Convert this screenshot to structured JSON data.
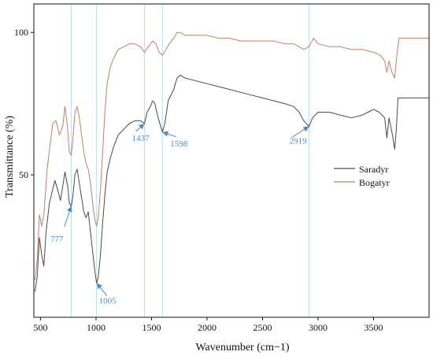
{
  "chart_data": {
    "type": "line",
    "title": "",
    "xlabel": "Wavenumber (cm−1)",
    "ylabel": "Transmittance (%)",
    "xlim": [
      440,
      4000
    ],
    "ylim": [
      0,
      110
    ],
    "x_ticks": [
      "500",
      "1000",
      "1500",
      "2000",
      "2500",
      "3000",
      "3500"
    ],
    "x_tick_values": [
      500,
      1000,
      1500,
      2000,
      2500,
      3000,
      3500
    ],
    "y_ticks": [
      "50",
      "100"
    ],
    "y_tick_values": [
      50,
      100
    ],
    "grid": false,
    "legend": {
      "position": "right-middle"
    },
    "reference_lines": [
      777,
      1005,
      1437,
      1598,
      2919
    ],
    "colors": {
      "Saradyr": "#4a4a4a",
      "Bogatyr": "#c0806a",
      "annotation": "#4a8bc8",
      "reference_line": "#b9dfea"
    },
    "series": [
      {
        "name": "Saradyr",
        "points": [
          [
            450,
            9
          ],
          [
            470,
            14
          ],
          [
            490,
            28
          ],
          [
            510,
            22
          ],
          [
            530,
            18
          ],
          [
            550,
            30
          ],
          [
            580,
            40
          ],
          [
            610,
            45
          ],
          [
            630,
            48
          ],
          [
            660,
            44
          ],
          [
            680,
            41
          ],
          [
            700,
            46
          ],
          [
            720,
            51
          ],
          [
            745,
            46
          ],
          [
            760,
            40
          ],
          [
            777,
            39
          ],
          [
            790,
            42
          ],
          [
            810,
            50
          ],
          [
            830,
            52
          ],
          [
            850,
            47
          ],
          [
            870,
            42
          ],
          [
            890,
            37
          ],
          [
            910,
            35
          ],
          [
            930,
            37
          ],
          [
            950,
            30
          ],
          [
            970,
            23
          ],
          [
            990,
            16
          ],
          [
            1005,
            12
          ],
          [
            1020,
            14
          ],
          [
            1040,
            22
          ],
          [
            1060,
            33
          ],
          [
            1080,
            43
          ],
          [
            1100,
            51
          ],
          [
            1130,
            56
          ],
          [
            1160,
            60
          ],
          [
            1200,
            64
          ],
          [
            1250,
            66
          ],
          [
            1300,
            68
          ],
          [
            1350,
            69
          ],
          [
            1400,
            69
          ],
          [
            1437,
            68
          ],
          [
            1460,
            72
          ],
          [
            1490,
            74
          ],
          [
            1510,
            76
          ],
          [
            1530,
            75
          ],
          [
            1560,
            70
          ],
          [
            1598,
            65
          ],
          [
            1620,
            68
          ],
          [
            1650,
            76
          ],
          [
            1700,
            80
          ],
          [
            1730,
            84
          ],
          [
            1760,
            85
          ],
          [
            1800,
            84
          ],
          [
            1900,
            83
          ],
          [
            2000,
            82
          ],
          [
            2100,
            81
          ],
          [
            2200,
            80
          ],
          [
            2300,
            79
          ],
          [
            2400,
            78
          ],
          [
            2500,
            77
          ],
          [
            2600,
            76
          ],
          [
            2700,
            75
          ],
          [
            2780,
            74
          ],
          [
            2830,
            72
          ],
          [
            2870,
            69
          ],
          [
            2919,
            67
          ],
          [
            2950,
            70
          ],
          [
            3000,
            72
          ],
          [
            3100,
            72
          ],
          [
            3200,
            71
          ],
          [
            3300,
            70
          ],
          [
            3400,
            71
          ],
          [
            3450,
            72
          ],
          [
            3500,
            73
          ],
          [
            3550,
            72
          ],
          [
            3600,
            70
          ],
          [
            3620,
            63
          ],
          [
            3640,
            70
          ],
          [
            3670,
            64
          ],
          [
            3690,
            59
          ],
          [
            3705,
            66
          ],
          [
            3720,
            77
          ],
          [
            3800,
            77
          ],
          [
            3900,
            77
          ],
          [
            4000,
            77
          ]
        ]
      },
      {
        "name": "Bogatyr",
        "points": [
          [
            450,
            13
          ],
          [
            470,
            20
          ],
          [
            490,
            36
          ],
          [
            510,
            32
          ],
          [
            530,
            36
          ],
          [
            560,
            52
          ],
          [
            590,
            62
          ],
          [
            610,
            68
          ],
          [
            640,
            69
          ],
          [
            670,
            64
          ],
          [
            700,
            67
          ],
          [
            720,
            74
          ],
          [
            740,
            68
          ],
          [
            760,
            58
          ],
          [
            777,
            57
          ],
          [
            790,
            62
          ],
          [
            810,
            72
          ],
          [
            830,
            74
          ],
          [
            850,
            70
          ],
          [
            870,
            64
          ],
          [
            890,
            58
          ],
          [
            910,
            54
          ],
          [
            930,
            52
          ],
          [
            950,
            47
          ],
          [
            970,
            40
          ],
          [
            990,
            34
          ],
          [
            1005,
            32
          ],
          [
            1020,
            35
          ],
          [
            1040,
            45
          ],
          [
            1060,
            58
          ],
          [
            1080,
            72
          ],
          [
            1100,
            82
          ],
          [
            1130,
            88
          ],
          [
            1160,
            91
          ],
          [
            1200,
            94
          ],
          [
            1250,
            95
          ],
          [
            1300,
            96
          ],
          [
            1350,
            96
          ],
          [
            1400,
            95
          ],
          [
            1437,
            93
          ],
          [
            1470,
            95
          ],
          [
            1510,
            97
          ],
          [
            1540,
            96
          ],
          [
            1570,
            93
          ],
          [
            1598,
            92
          ],
          [
            1630,
            94
          ],
          [
            1660,
            96
          ],
          [
            1700,
            98
          ],
          [
            1730,
            100
          ],
          [
            1760,
            100
          ],
          [
            1800,
            99
          ],
          [
            1900,
            99
          ],
          [
            2000,
            99
          ],
          [
            2100,
            98
          ],
          [
            2200,
            98
          ],
          [
            2300,
            97
          ],
          [
            2400,
            97
          ],
          [
            2500,
            97
          ],
          [
            2600,
            97
          ],
          [
            2700,
            96
          ],
          [
            2780,
            96
          ],
          [
            2830,
            95
          ],
          [
            2870,
            94
          ],
          [
            2919,
            95
          ],
          [
            2960,
            98
          ],
          [
            3000,
            96
          ],
          [
            3100,
            95
          ],
          [
            3200,
            95
          ],
          [
            3300,
            94
          ],
          [
            3400,
            94
          ],
          [
            3500,
            93
          ],
          [
            3560,
            92
          ],
          [
            3600,
            90
          ],
          [
            3620,
            86
          ],
          [
            3640,
            90
          ],
          [
            3665,
            86
          ],
          [
            3690,
            84
          ],
          [
            3710,
            92
          ],
          [
            3730,
            98
          ],
          [
            3800,
            98
          ],
          [
            3900,
            98
          ],
          [
            4000,
            98
          ]
        ]
      }
    ],
    "annotations": [
      {
        "label": "777",
        "x": 777,
        "y": 39
      },
      {
        "label": "1005",
        "x": 1005,
        "y": 12
      },
      {
        "label": "1437",
        "x": 1437,
        "y": 68
      },
      {
        "label": "1598",
        "x": 1598,
        "y": 65
      },
      {
        "label": "2919",
        "x": 2919,
        "y": 67
      }
    ]
  }
}
